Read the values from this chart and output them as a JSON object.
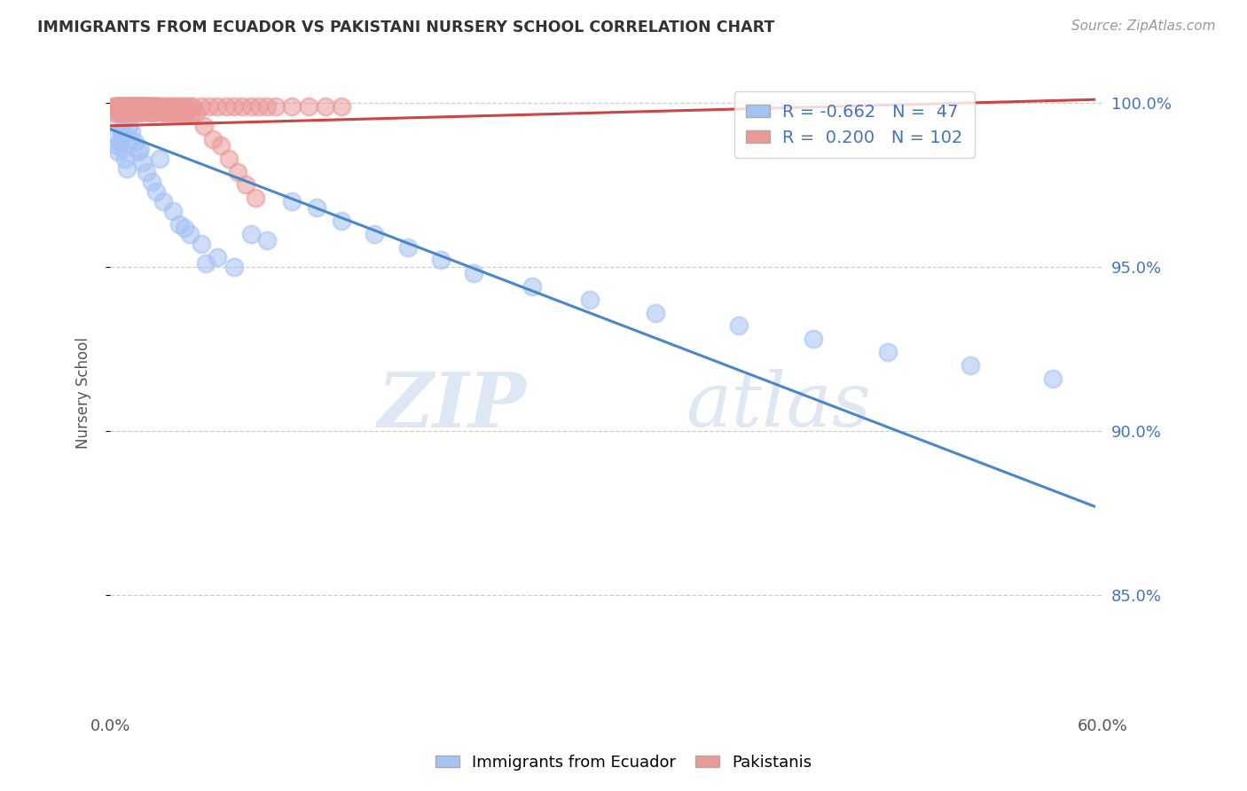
{
  "title": "IMMIGRANTS FROM ECUADOR VS PAKISTANI NURSERY SCHOOL CORRELATION CHART",
  "source": "Source: ZipAtlas.com",
  "ylabel": "Nursery School",
  "xlim": [
    0.0,
    0.6
  ],
  "ylim": [
    0.815,
    1.008
  ],
  "yticks": [
    0.85,
    0.9,
    0.95,
    1.0
  ],
  "ytick_labels": [
    "85.0%",
    "90.0%",
    "95.0%",
    "100.0%"
  ],
  "blue_R": "-0.662",
  "blue_N": "47",
  "pink_R": "0.200",
  "pink_N": "102",
  "blue_color": "#a4c2f4",
  "pink_color": "#ea9999",
  "blue_line_color": "#4a86c8",
  "pink_line_color": "#cc4444",
  "legend_label_blue": "Immigrants from Ecuador",
  "legend_label_pink": "Pakistanis",
  "watermark_zip": "ZIP",
  "watermark_atlas": "atlas",
  "background_color": "#ffffff",
  "grid_color": "#cccccc",
  "title_color": "#333333",
  "axis_label_color": "#555555",
  "tick_color": "#4472c4",
  "blue_scatter_x": [
    0.003,
    0.004,
    0.005,
    0.006,
    0.007,
    0.008,
    0.009,
    0.01,
    0.011,
    0.013,
    0.015,
    0.017,
    0.02,
    0.022,
    0.025,
    0.028,
    0.032,
    0.038,
    0.042,
    0.048,
    0.055,
    0.065,
    0.075,
    0.085,
    0.095,
    0.11,
    0.125,
    0.14,
    0.16,
    0.18,
    0.2,
    0.22,
    0.255,
    0.29,
    0.33,
    0.38,
    0.425,
    0.47,
    0.52,
    0.57,
    0.004,
    0.007,
    0.012,
    0.018,
    0.03,
    0.045,
    0.058
  ],
  "blue_scatter_y": [
    0.99,
    0.987,
    0.985,
    0.988,
    0.992,
    0.986,
    0.983,
    0.98,
    0.993,
    0.991,
    0.988,
    0.985,
    0.982,
    0.979,
    0.976,
    0.973,
    0.97,
    0.967,
    0.963,
    0.96,
    0.957,
    0.953,
    0.95,
    0.96,
    0.958,
    0.97,
    0.968,
    0.964,
    0.96,
    0.956,
    0.952,
    0.948,
    0.944,
    0.94,
    0.936,
    0.932,
    0.928,
    0.924,
    0.92,
    0.916,
    0.994,
    0.991,
    0.989,
    0.986,
    0.983,
    0.962,
    0.951
  ],
  "pink_scatter_x": [
    0.002,
    0.003,
    0.004,
    0.004,
    0.005,
    0.005,
    0.006,
    0.006,
    0.007,
    0.007,
    0.008,
    0.008,
    0.009,
    0.009,
    0.01,
    0.01,
    0.011,
    0.011,
    0.012,
    0.012,
    0.013,
    0.013,
    0.014,
    0.014,
    0.015,
    0.015,
    0.016,
    0.016,
    0.017,
    0.017,
    0.018,
    0.018,
    0.019,
    0.019,
    0.02,
    0.02,
    0.021,
    0.021,
    0.022,
    0.022,
    0.023,
    0.024,
    0.025,
    0.026,
    0.027,
    0.028,
    0.029,
    0.03,
    0.032,
    0.034,
    0.036,
    0.038,
    0.04,
    0.042,
    0.044,
    0.046,
    0.048,
    0.05,
    0.055,
    0.06,
    0.065,
    0.07,
    0.075,
    0.08,
    0.085,
    0.09,
    0.095,
    0.1,
    0.11,
    0.12,
    0.13,
    0.14,
    0.003,
    0.005,
    0.007,
    0.009,
    0.011,
    0.013,
    0.015,
    0.017,
    0.019,
    0.023,
    0.025,
    0.027,
    0.031,
    0.033,
    0.035,
    0.037,
    0.039,
    0.041,
    0.043,
    0.045,
    0.047,
    0.049,
    0.052,
    0.057,
    0.062,
    0.067,
    0.072,
    0.077,
    0.082,
    0.088
  ],
  "pink_scatter_y": [
    0.999,
    0.999,
    0.999,
    0.999,
    0.999,
    0.999,
    0.999,
    0.999,
    0.999,
    0.999,
    0.999,
    0.999,
    0.999,
    0.999,
    0.999,
    0.999,
    0.999,
    0.999,
    0.999,
    0.999,
    0.999,
    0.999,
    0.999,
    0.999,
    0.999,
    0.999,
    0.999,
    0.999,
    0.999,
    0.999,
    0.999,
    0.999,
    0.999,
    0.999,
    0.999,
    0.999,
    0.999,
    0.999,
    0.999,
    0.999,
    0.999,
    0.999,
    0.999,
    0.999,
    0.999,
    0.999,
    0.999,
    0.999,
    0.999,
    0.999,
    0.999,
    0.999,
    0.999,
    0.999,
    0.999,
    0.999,
    0.999,
    0.999,
    0.999,
    0.999,
    0.999,
    0.999,
    0.999,
    0.999,
    0.999,
    0.999,
    0.999,
    0.999,
    0.999,
    0.999,
    0.999,
    0.999,
    0.997,
    0.997,
    0.997,
    0.997,
    0.997,
    0.997,
    0.997,
    0.997,
    0.997,
    0.997,
    0.997,
    0.997,
    0.997,
    0.997,
    0.997,
    0.997,
    0.997,
    0.997,
    0.997,
    0.997,
    0.997,
    0.997,
    0.997,
    0.993,
    0.989,
    0.987,
    0.983,
    0.979,
    0.975,
    0.971
  ],
  "blue_line_x0": 0.0,
  "blue_line_y0": 0.992,
  "blue_line_x1": 0.595,
  "blue_line_y1": 0.877,
  "pink_line_x0": 0.0,
  "pink_line_y0": 0.993,
  "pink_line_x1": 0.595,
  "pink_line_y1": 1.001
}
